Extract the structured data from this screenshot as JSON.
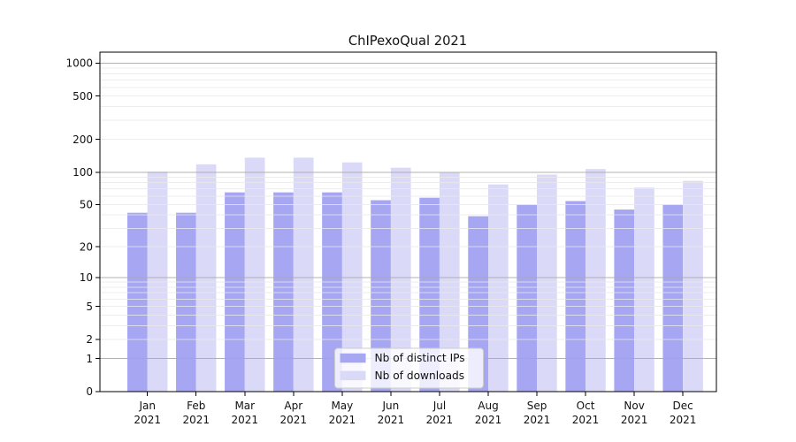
{
  "chart_data": {
    "type": "bar",
    "title": "ChIPexoQual 2021",
    "categories": [
      "Jan 2021",
      "Feb 2021",
      "Mar 2021",
      "Apr 2021",
      "May 2021",
      "Jun 2021",
      "Jul 2021",
      "Aug 2021",
      "Sep 2021",
      "Oct 2021",
      "Nov 2021",
      "Dec 2021"
    ],
    "series": [
      {
        "name": "Nb of distinct IPs",
        "color": "#a6a6f2",
        "values": [
          42,
          42,
          65,
          65,
          65,
          55,
          58,
          39,
          50,
          54,
          45,
          50
        ]
      },
      {
        "name": "Nb of downloads",
        "color": "#dadaf8",
        "values": [
          101,
          118,
          136,
          136,
          123,
          110,
          100,
          77,
          95,
          107,
          72,
          83
        ]
      }
    ],
    "y_scale": "log1p",
    "y_ticks": [
      0,
      1,
      2,
      5,
      10,
      20,
      50,
      100,
      200,
      500,
      1000
    ],
    "ylim": [
      0,
      1259
    ],
    "xlabel": "",
    "ylabel": "",
    "grid": true,
    "legend_position": "inside-bottom-center"
  },
  "style": {
    "background": "#ffffff",
    "bar_color_ips": "#a6a6f2",
    "bar_color_downloads": "#dadaf8",
    "grid_major_color": "#a8a8a8",
    "grid_minor_color": "#e8e8e8",
    "axis_color": "#000000",
    "text_color": "#111111",
    "legend_border_color": "#cccccc",
    "legend_background": "rgba(255,255,255,0.8)"
  }
}
